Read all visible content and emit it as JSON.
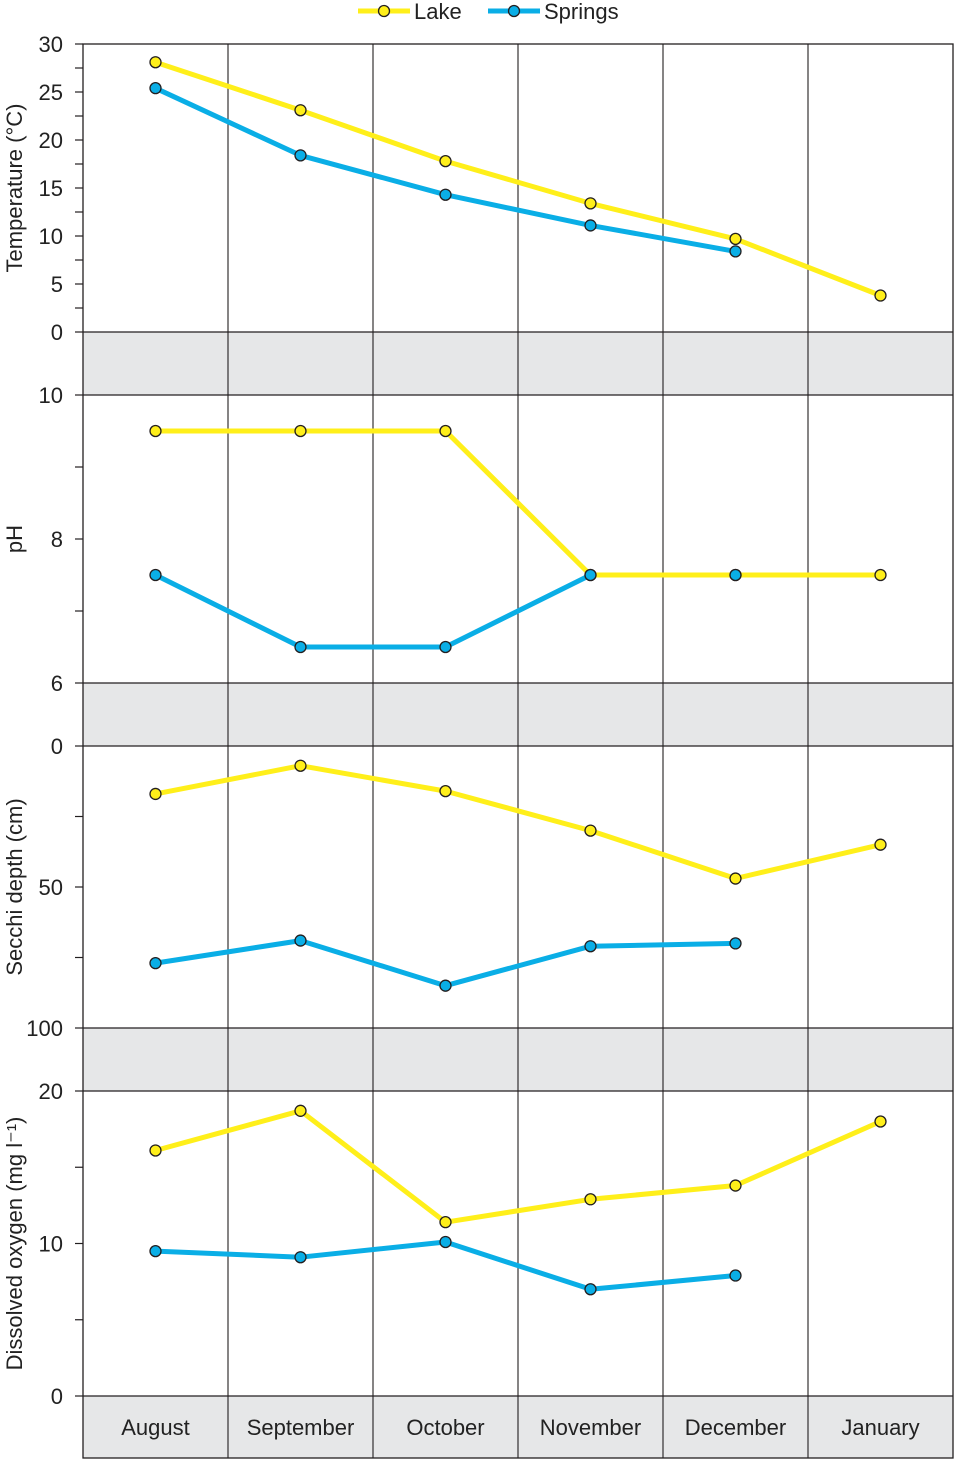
{
  "legend": {
    "placement": "top-center",
    "items": [
      {
        "label": "Lake",
        "color": "#ffef1a"
      },
      {
        "label": "Springs",
        "color": "#0aaee6"
      }
    ]
  },
  "colors": {
    "lake": "#ffef1a",
    "springs": "#0aaee6",
    "band": "#e6e7e8",
    "line": "#231f20"
  },
  "chart_data": [
    {
      "type": "line",
      "ylabel": "Temperature (°C)",
      "ylim": [
        0,
        30
      ],
      "yticks": [
        0,
        5,
        10,
        15,
        20,
        25,
        30
      ],
      "categories": [
        "August",
        "September",
        "October",
        "November",
        "December",
        "January"
      ],
      "series": [
        {
          "name": "Lake",
          "values": [
            28.1,
            23.1,
            17.8,
            13.4,
            9.7,
            3.8
          ]
        },
        {
          "name": "Springs",
          "values": [
            25.4,
            18.4,
            14.3,
            11.1,
            8.4,
            null
          ]
        }
      ]
    },
    {
      "type": "line",
      "ylabel": "pH",
      "ylim": [
        6,
        10
      ],
      "yticks": [
        6,
        8,
        10
      ],
      "categories": [
        "August",
        "September",
        "October",
        "November",
        "December",
        "January"
      ],
      "series": [
        {
          "name": "Lake",
          "values": [
            9.5,
            9.5,
            9.5,
            7.5,
            7.5,
            7.5
          ]
        },
        {
          "name": "Springs",
          "values": [
            7.5,
            6.5,
            6.5,
            7.5,
            7.5,
            null
          ]
        }
      ]
    },
    {
      "type": "line",
      "ylabel": "Secchi depth (cm)",
      "ylim": [
        0,
        100
      ],
      "y_inverted": true,
      "yticks": [
        0,
        50,
        100
      ],
      "categories": [
        "August",
        "September",
        "October",
        "November",
        "December",
        "January"
      ],
      "series": [
        {
          "name": "Lake",
          "values": [
            17,
            7,
            16,
            30,
            47,
            35
          ]
        },
        {
          "name": "Springs",
          "values": [
            77,
            69,
            85,
            71,
            70,
            null
          ]
        }
      ]
    },
    {
      "type": "line",
      "ylabel": "Dissolved oxygen (mg l⁻¹)",
      "ylim": [
        0,
        20
      ],
      "yticks": [
        0,
        10,
        20
      ],
      "categories": [
        "August",
        "September",
        "October",
        "November",
        "December",
        "January"
      ],
      "series": [
        {
          "name": "Lake",
          "values": [
            16.1,
            18.7,
            11.4,
            12.9,
            13.8,
            18.0
          ]
        },
        {
          "name": "Springs",
          "values": [
            9.5,
            9.1,
            10.1,
            7.0,
            7.9,
            null
          ]
        }
      ]
    }
  ],
  "x_axis": {
    "categories": [
      "August",
      "September",
      "October",
      "November",
      "December",
      "January"
    ]
  }
}
